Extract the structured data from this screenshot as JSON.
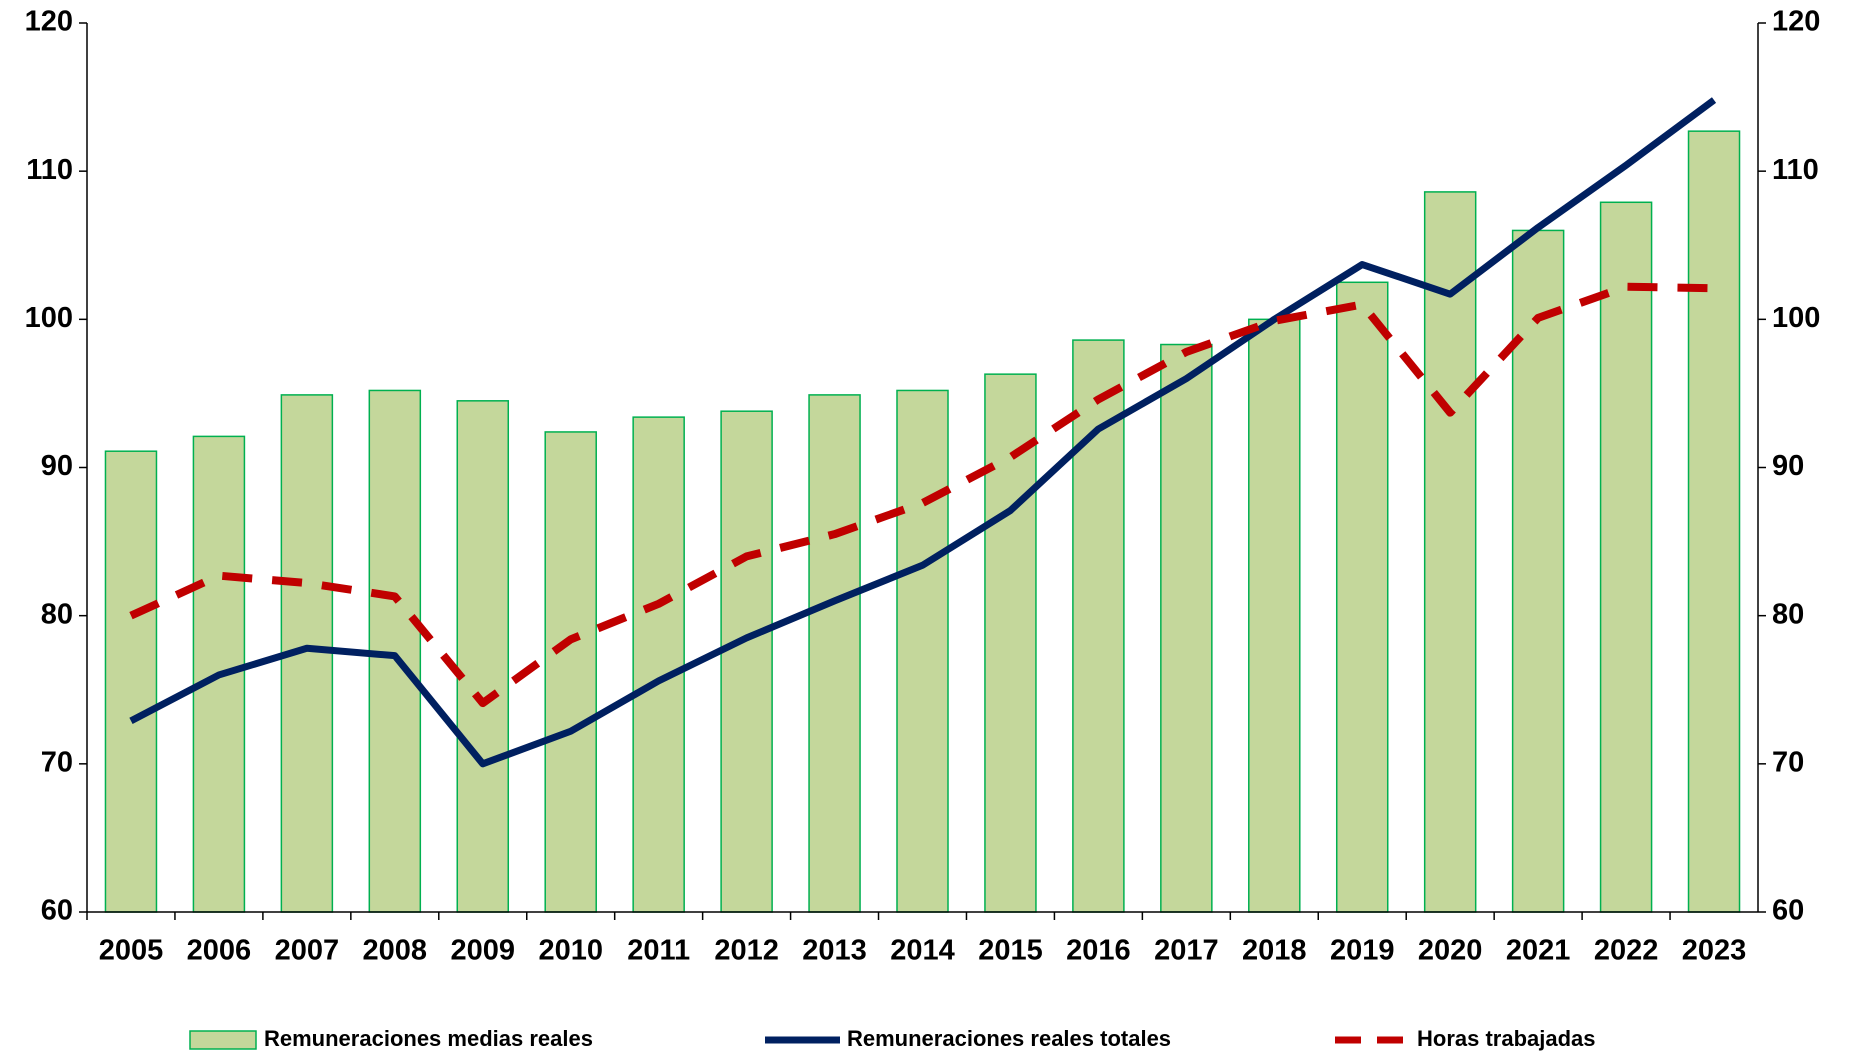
{
  "chart_data": {
    "type": "bar_line",
    "categories": [
      "2005",
      "2006",
      "2007",
      "2008",
      "2009",
      "2010",
      "2011",
      "2012",
      "2013",
      "2014",
      "2015",
      "2016",
      "2017",
      "2018",
      "2019",
      "2020",
      "2021",
      "2022",
      "2023"
    ],
    "series": [
      {
        "name": "Remuneraciones medias reales",
        "type": "bar",
        "color": "#c4d79b",
        "edge_color": "#00b050",
        "values": [
          91.1,
          92.1,
          94.9,
          95.2,
          94.5,
          92.4,
          93.4,
          93.8,
          94.9,
          95.2,
          96.3,
          98.6,
          98.3,
          100.0,
          102.5,
          108.6,
          106.0,
          107.9,
          112.7
        ]
      },
      {
        "name": "Remuneraciones reales totales",
        "type": "line",
        "color": "#002060",
        "dash": false,
        "values": [
          72.9,
          76.0,
          77.8,
          77.3,
          70.0,
          72.2,
          75.6,
          78.5,
          81.0,
          83.4,
          87.1,
          92.6,
          96.0,
          100.0,
          103.7,
          101.7,
          106.2,
          110.4,
          114.8
        ]
      },
      {
        "name": "Horas trabajadas",
        "type": "line",
        "color": "#c00000",
        "dash": true,
        "values": [
          80.0,
          82.7,
          82.2,
          81.3,
          74.1,
          78.4,
          80.8,
          84.0,
          85.5,
          87.6,
          90.7,
          94.6,
          97.8,
          99.9,
          101.0,
          93.7,
          100.1,
          102.2,
          102.1
        ]
      }
    ],
    "ylim": [
      60,
      120
    ],
    "yticks": [
      60,
      70,
      80,
      90,
      100,
      110,
      120
    ],
    "y2lim": [
      60,
      120
    ],
    "y2ticks": [
      60,
      70,
      80,
      90,
      100,
      110,
      120
    ],
    "grid": false
  }
}
